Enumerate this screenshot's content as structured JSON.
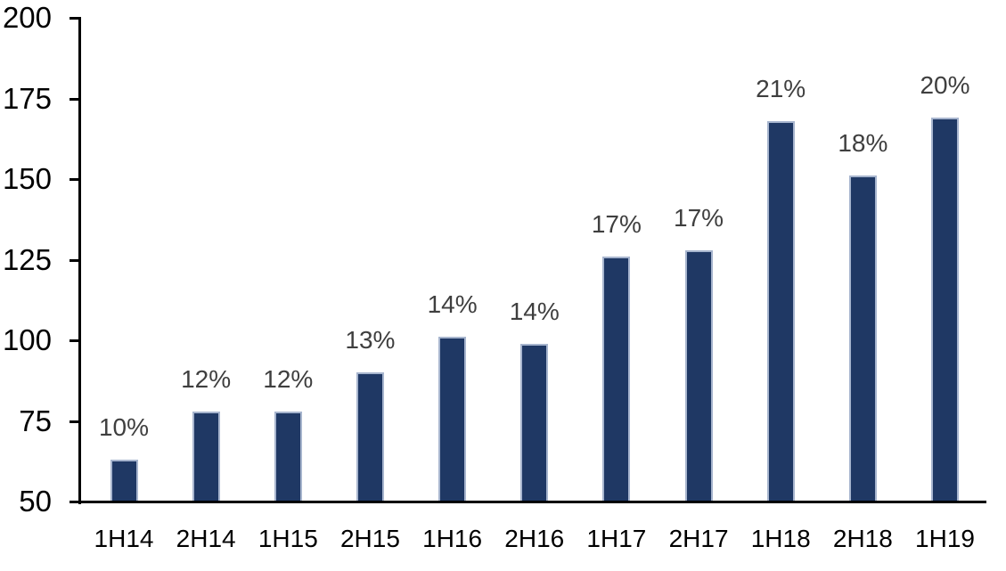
{
  "chart_data": {
    "type": "bar",
    "title": "",
    "xlabel": "",
    "ylabel": "",
    "categories": [
      "1H14",
      "2H14",
      "1H15",
      "2H15",
      "1H16",
      "2H16",
      "1H17",
      "2H17",
      "1H18",
      "2H18",
      "1H19"
    ],
    "values": [
      63,
      78,
      78,
      90,
      101,
      99,
      126,
      128,
      168,
      151,
      169
    ],
    "bar_labels": [
      "10%",
      "12%",
      "12%",
      "13%",
      "14%",
      "14%",
      "17%",
      "17%",
      "21%",
      "18%",
      "20%"
    ],
    "y_ticks": [
      50,
      75,
      100,
      125,
      150,
      175,
      200
    ],
    "ylim": [
      50,
      200
    ],
    "grid": false,
    "legend": false,
    "colors": {
      "bar_fill": "#1F3864",
      "bar_border": "#A7B5CE",
      "value_label": "#3F3F3F",
      "axis_text": "#000000",
      "axis_line": "#000000"
    }
  }
}
